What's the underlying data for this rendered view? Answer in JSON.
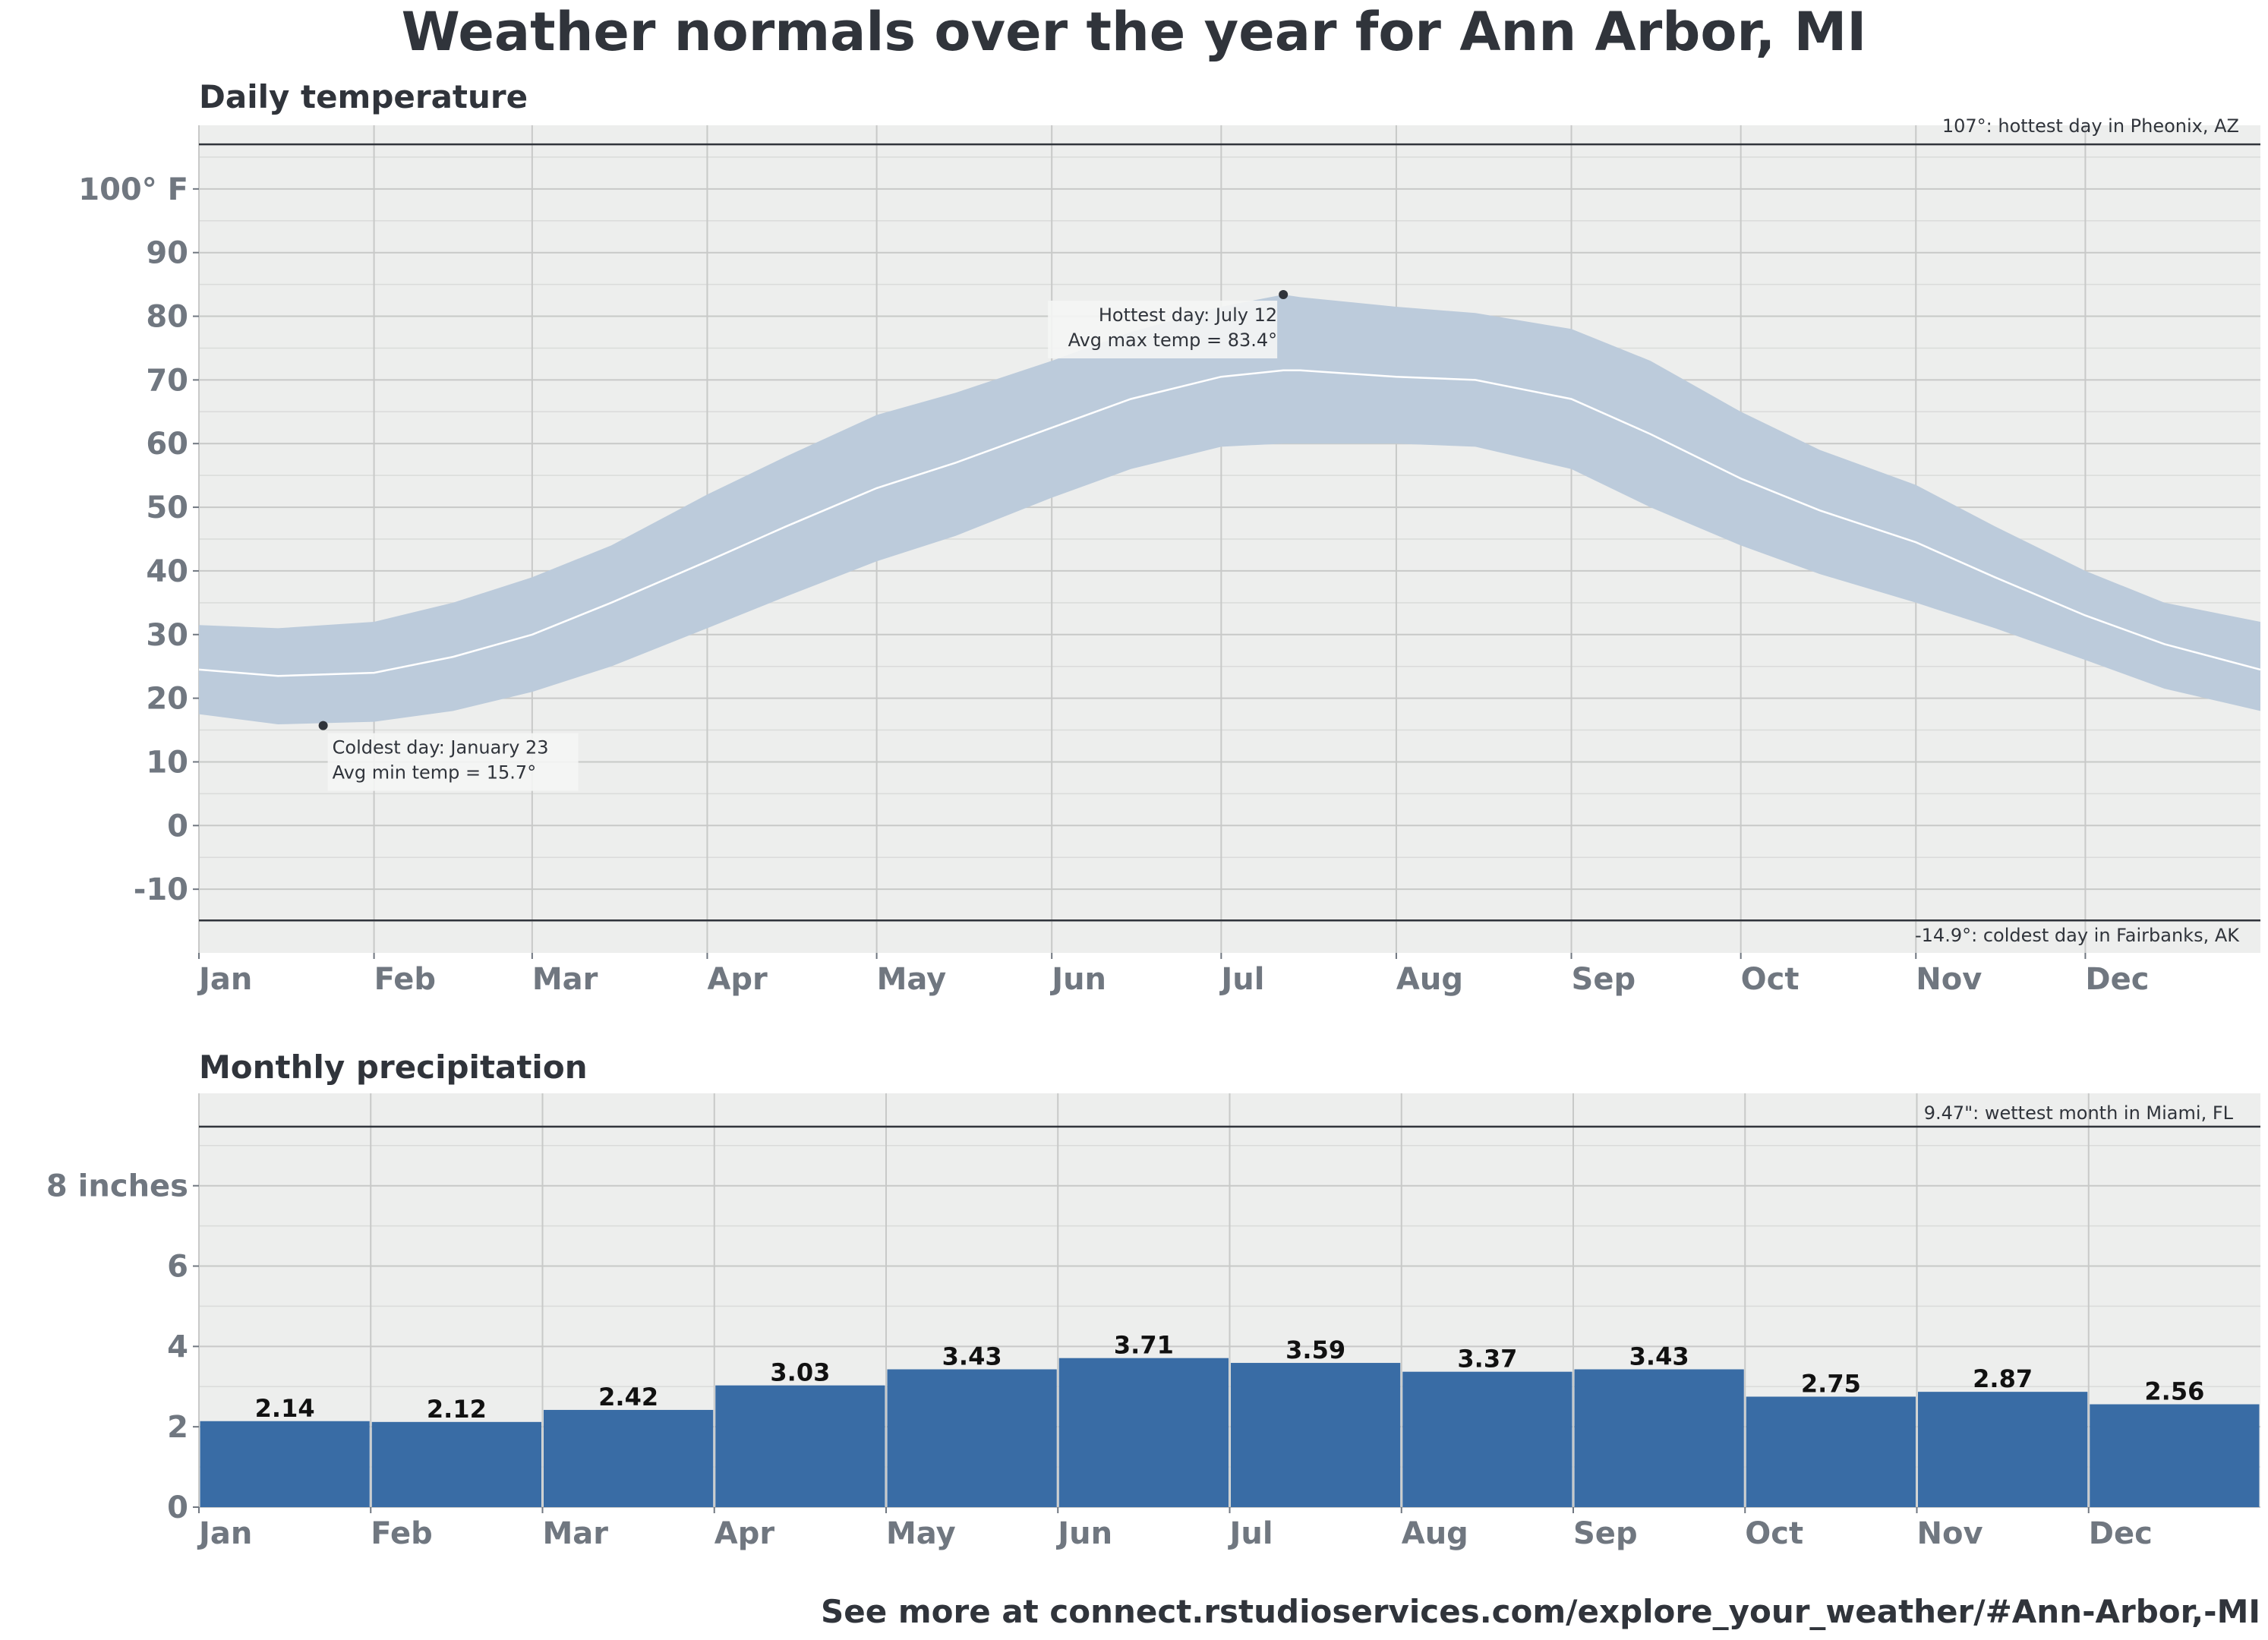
{
  "title": "Weather normals over the year for Ann Arbor, MI",
  "footer": "See more at connect.rstudioservices.com/explore_your_weather/#Ann-Arbor,-MI",
  "colors": {
    "panel_bg": "#edeeed",
    "band": "#bccbdb",
    "avg_line": "#ffffff",
    "bar": "#396ca5",
    "ref_line": "#30343b"
  },
  "chart_data": [
    {
      "type": "area",
      "title": "Daily temperature",
      "months": [
        "Jan",
        "Feb",
        "Mar",
        "Apr",
        "May",
        "Jun",
        "Jul",
        "Aug",
        "Sep",
        "Oct",
        "Nov",
        "Dec"
      ],
      "y_ticks": [
        -10,
        0,
        10,
        20,
        30,
        40,
        50,
        60,
        70,
        80,
        90,
        100
      ],
      "y_tick_labels": [
        "-10",
        "0",
        "10",
        "20",
        "30",
        "40",
        "50",
        "60",
        "70",
        "80",
        "90",
        "100° F"
      ],
      "ylim": [
        -20,
        110
      ],
      "x_unit": "day of year",
      "xlim": [
        1,
        366
      ],
      "grid": true,
      "series": [
        {
          "x": [
            1,
            15,
            32,
            46,
            60,
            74,
            91,
            105,
            121,
            135,
            152,
            166,
            182,
            193,
            196,
            213,
            227,
            244,
            258,
            274,
            288,
            305,
            319,
            335,
            349,
            366
          ],
          "max": [
            31.5,
            31,
            32,
            35,
            39,
            44,
            52,
            58,
            64.5,
            68,
            73,
            77.5,
            81.5,
            83.4,
            83,
            81.5,
            80.5,
            78,
            73,
            65,
            59,
            53.5,
            47,
            40,
            35,
            32
          ],
          "min": [
            17.5,
            15.9,
            16.3,
            18,
            21,
            25,
            31,
            36,
            41.5,
            45.5,
            51.5,
            56,
            59.5,
            60,
            60,
            60,
            59.5,
            56,
            50,
            44,
            39.5,
            35,
            31,
            26,
            21.5,
            18
          ],
          "avg": [
            24.5,
            23.5,
            24,
            26.5,
            30,
            35,
            41.5,
            47,
            53,
            57,
            62.5,
            67,
            70.5,
            71.5,
            71.5,
            70.5,
            70,
            67,
            61.5,
            54.5,
            49.5,
            44.5,
            39,
            33,
            28.5,
            24.5
          ]
        }
      ],
      "reference_lines": [
        {
          "value": 107,
          "label": "107°: hottest day in Pheonix, AZ"
        },
        {
          "value": -14.9,
          "label": "-14.9°: coldest day in Fairbanks, AK"
        }
      ],
      "annotations": [
        {
          "day": 23,
          "value": 15.7,
          "line1": "Coldest day: January 23",
          "line2": "Avg min temp = 15.7°"
        },
        {
          "day": 193,
          "value": 83.4,
          "line1": "Hottest day: July 12",
          "line2": "Avg max temp = 83.4°"
        }
      ]
    },
    {
      "type": "bar",
      "title": "Monthly precipitation",
      "categories": [
        "Jan",
        "Feb",
        "Mar",
        "Apr",
        "May",
        "Jun",
        "Jul",
        "Aug",
        "Sep",
        "Oct",
        "Nov",
        "Dec"
      ],
      "values": [
        2.14,
        2.12,
        2.42,
        3.03,
        3.43,
        3.71,
        3.59,
        3.37,
        3.43,
        2.75,
        2.87,
        2.56
      ],
      "value_labels": [
        "2.14",
        "2.12",
        "2.42",
        "3.03",
        "3.43",
        "3.71",
        "3.59",
        "3.37",
        "3.43",
        "2.75",
        "2.87",
        "2.56"
      ],
      "y_ticks": [
        0,
        2,
        4,
        6,
        8
      ],
      "y_tick_labels": [
        "0",
        "2",
        "4",
        "6",
        "8 inches"
      ],
      "ylim": [
        0,
        10.3
      ],
      "grid": true,
      "reference_lines": [
        {
          "value": 9.47,
          "label": "9.47\": wettest month in Miami, FL"
        }
      ]
    }
  ]
}
